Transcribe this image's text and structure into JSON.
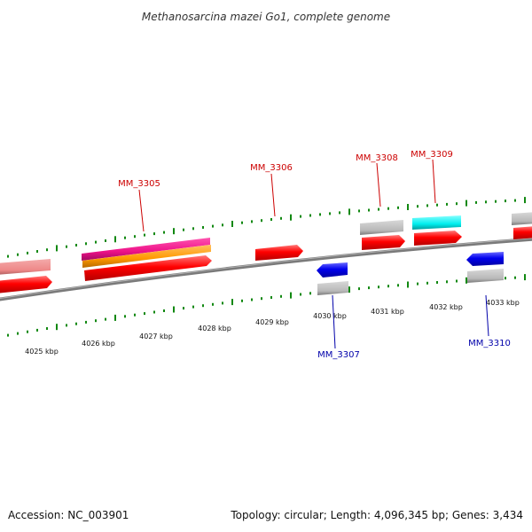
{
  "title": "Methanosarcina mazei Go1, complete genome",
  "footer": {
    "accession": "Accession: NC_003901",
    "topology": "Topology: circular; Length: 4,096,345 bp; Genes: 3,434"
  },
  "scale": {
    "unit": "kbp",
    "labels": [
      "4025 kbp",
      "4026 kbp",
      "4027 kbp",
      "4028 kbp",
      "4029 kbp",
      "4030 kbp",
      "4031 kbp",
      "4032 kbp",
      "4033 kbp"
    ]
  },
  "genes": [
    {
      "id": "MM_3305",
      "strand": "forward",
      "color": "#cc0000"
    },
    {
      "id": "MM_3306",
      "strand": "forward",
      "color": "#cc0000"
    },
    {
      "id": "MM_3307",
      "strand": "reverse",
      "color": "#0000aa"
    },
    {
      "id": "MM_3308",
      "strand": "forward",
      "color": "#cc0000"
    },
    {
      "id": "MM_3309",
      "strand": "forward",
      "color": "#cc0000"
    },
    {
      "id": "MM_3310",
      "strand": "reverse",
      "color": "#0000aa"
    }
  ],
  "colors": {
    "forward_gene": "#ff0000",
    "reverse_gene": "#0000ee",
    "backbone": "#808080",
    "tick": "#118811",
    "feature_magenta": "#ee1188",
    "feature_orange": "#ff9900",
    "feature_cyan": "#00eeee",
    "feature_gray": "#b8b8b8",
    "feature_pink": "#ee8888"
  }
}
